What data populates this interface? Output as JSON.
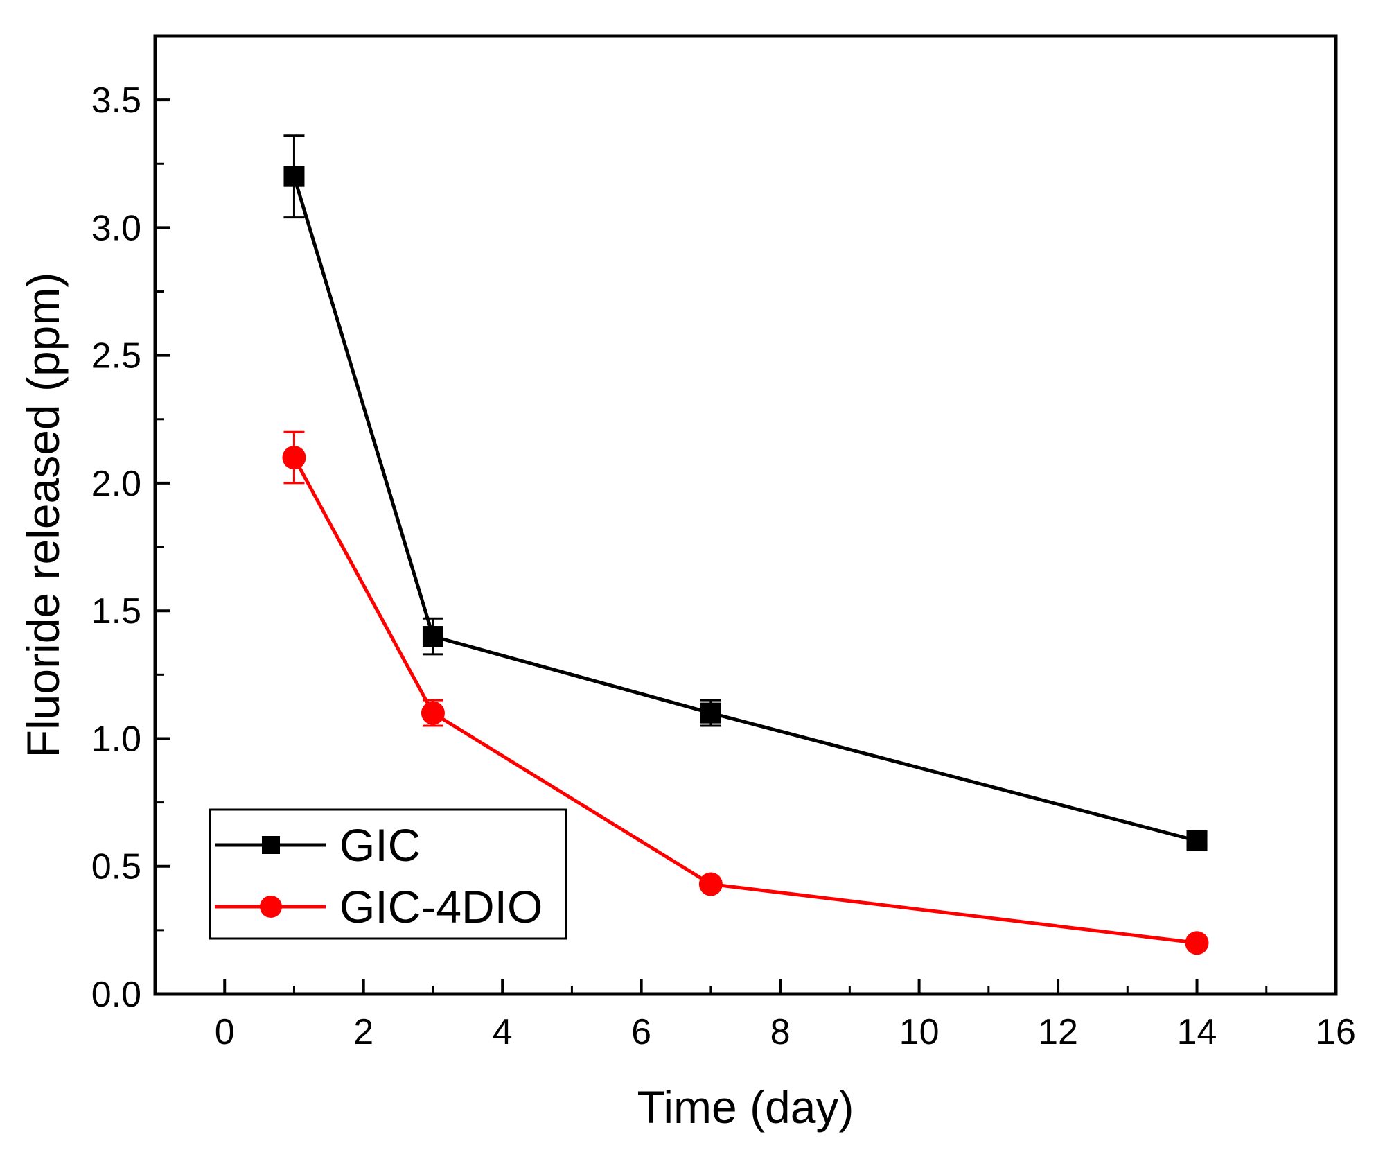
{
  "chart_data": {
    "type": "line",
    "title": "",
    "xlabel": "Time (day)",
    "ylabel": "Fluoride released (ppm)",
    "xlim": [
      -1,
      16
    ],
    "ylim": [
      0,
      3.75
    ],
    "xticks": [
      0,
      2,
      4,
      6,
      8,
      10,
      12,
      14,
      16
    ],
    "xtick_labels": [
      "0",
      "2",
      "4",
      "6",
      "8",
      "10",
      "12",
      "14",
      "16"
    ],
    "yticks": [
      0.0,
      0.5,
      1.0,
      1.5,
      2.0,
      2.5,
      3.0,
      3.5
    ],
    "ytick_labels": [
      "0.0",
      "0.5",
      "1.0",
      "1.5",
      "2.0",
      "2.5",
      "3.0",
      "3.5"
    ],
    "x_minor_step": 1,
    "y_minor_step": 0.25,
    "grid": false,
    "legend_position": "bottom-left",
    "x": [
      1,
      3,
      7,
      14
    ],
    "series": [
      {
        "name": "GIC",
        "color": "#000000",
        "marker": "square",
        "values": [
          3.2,
          1.4,
          1.1,
          0.6
        ],
        "errors": [
          0.16,
          0.07,
          0.05,
          0.02
        ]
      },
      {
        "name": "GIC-4DIO",
        "color": "#ff0000",
        "marker": "circle",
        "values": [
          2.1,
          1.1,
          0.43,
          0.2
        ],
        "errors": [
          0.1,
          0.05,
          0.0,
          0.0
        ]
      }
    ]
  }
}
